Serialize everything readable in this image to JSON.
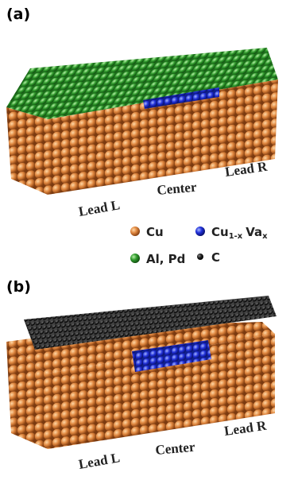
{
  "panels": [
    {
      "label": "(a)",
      "sites": [
        "Lead L",
        "Center",
        "Lead R"
      ]
    },
    {
      "label": "(b)",
      "sites": [
        "Lead L",
        "Center",
        "Lead R"
      ]
    }
  ],
  "legend": [
    {
      "text": "Cu"
    },
    {
      "parts": [
        "Cu",
        "1-x",
        "Va",
        "x"
      ]
    },
    {
      "text": "Al, Pd"
    },
    {
      "text": "C"
    }
  ]
}
